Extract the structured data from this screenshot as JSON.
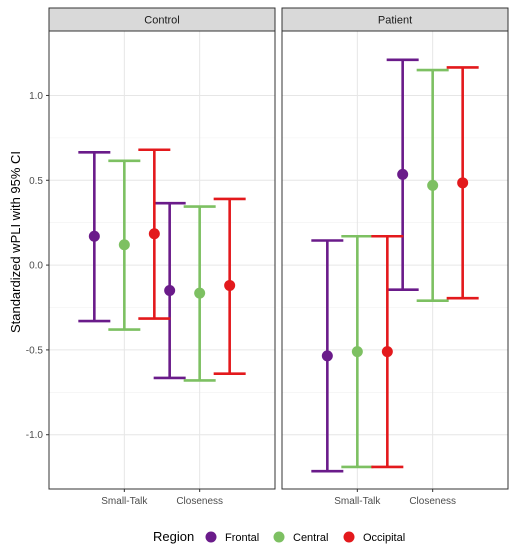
{
  "chart_data": {
    "type": "errorbar",
    "title": "",
    "ylabel": "Standardized wPLI with 95% CI",
    "xlabel": "",
    "ylim": [
      -1.32,
      1.38
    ],
    "yticks": [
      -1.0,
      -0.5,
      0.0,
      0.5,
      1.0
    ],
    "ytick_labels": [
      "-1.0",
      "-0.5",
      "0.0",
      "0.5",
      "1.0"
    ],
    "grid": true,
    "legend_position": "bottom",
    "categories": [
      "Small-Talk",
      "Closeness"
    ],
    "legend": {
      "title": "Region",
      "entries": [
        "Frontal",
        "Central",
        "Occipital"
      ]
    },
    "series_colors": {
      "Frontal": "#6a1b8a",
      "Central": "#7dc062",
      "Occipital": "#e3191c"
    },
    "panels": [
      {
        "name": "Control",
        "series": [
          {
            "name": "Frontal",
            "mean": [
              0.17,
              -0.15
            ],
            "lower": [
              -0.33,
              -0.665
            ],
            "upper": [
              0.665,
              0.365
            ]
          },
          {
            "name": "Central",
            "mean": [
              0.12,
              -0.165
            ],
            "lower": [
              -0.38,
              -0.68
            ],
            "upper": [
              0.615,
              0.345
            ]
          },
          {
            "name": "Occipital",
            "mean": [
              0.185,
              -0.12
            ],
            "lower": [
              -0.315,
              -0.64
            ],
            "upper": [
              0.68,
              0.39
            ]
          }
        ]
      },
      {
        "name": "Patient",
        "series": [
          {
            "name": "Frontal",
            "mean": [
              -0.535,
              0.535
            ],
            "lower": [
              -1.215,
              -0.145
            ],
            "upper": [
              0.145,
              1.21
            ]
          },
          {
            "name": "Central",
            "mean": [
              -0.51,
              0.47
            ],
            "lower": [
              -1.19,
              -0.21
            ],
            "upper": [
              0.17,
              1.15
            ]
          },
          {
            "name": "Occipital",
            "mean": [
              -0.51,
              0.485
            ],
            "lower": [
              -1.19,
              -0.195
            ],
            "upper": [
              0.17,
              1.165
            ]
          }
        ]
      }
    ]
  }
}
